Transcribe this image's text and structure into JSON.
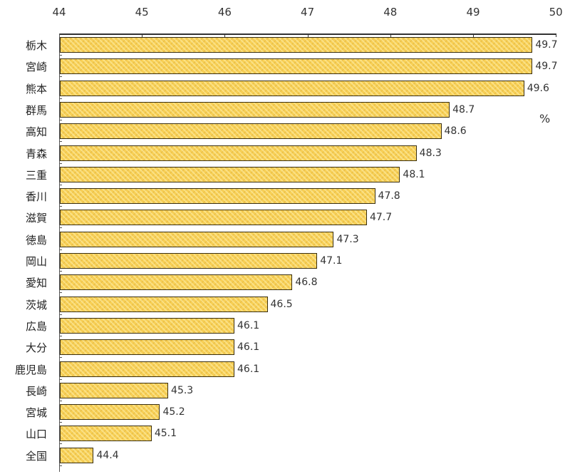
{
  "chart_data": {
    "type": "bar",
    "orientation": "horizontal",
    "title": "",
    "xlabel": "",
    "ylabel": "",
    "unit": "%",
    "xlim": [
      44,
      50
    ],
    "x_ticks": [
      44,
      45,
      46,
      47,
      48,
      49,
      50
    ],
    "grid": false,
    "legend": null,
    "categories": [
      "栃木",
      "宮崎",
      "熊本",
      "群馬",
      "高知",
      "青森",
      "三重",
      "香川",
      "滋賀",
      "徳島",
      "岡山",
      "愛知",
      "茨城",
      "広島",
      "大分",
      "鹿児島",
      "長崎",
      "宮城",
      "山口",
      "全国"
    ],
    "values": [
      49.7,
      49.7,
      49.6,
      48.7,
      48.6,
      48.3,
      48.1,
      47.8,
      47.7,
      47.3,
      47.1,
      46.8,
      46.5,
      46.1,
      46.1,
      46.1,
      45.3,
      45.2,
      45.1,
      44.4
    ],
    "value_labels": [
      "49.7",
      "49.7",
      "49.6",
      "48.7",
      "48.6",
      "48.3",
      "48.1",
      "47.8",
      "47.7",
      "47.3",
      "47.1",
      "46.8",
      "46.5",
      "46.1",
      "46.1",
      "46.1",
      "45.3",
      "45.2",
      "45.1",
      "44.4"
    ],
    "bar_color": "#f7cf55",
    "bar_border_color": "#3a2f10"
  }
}
